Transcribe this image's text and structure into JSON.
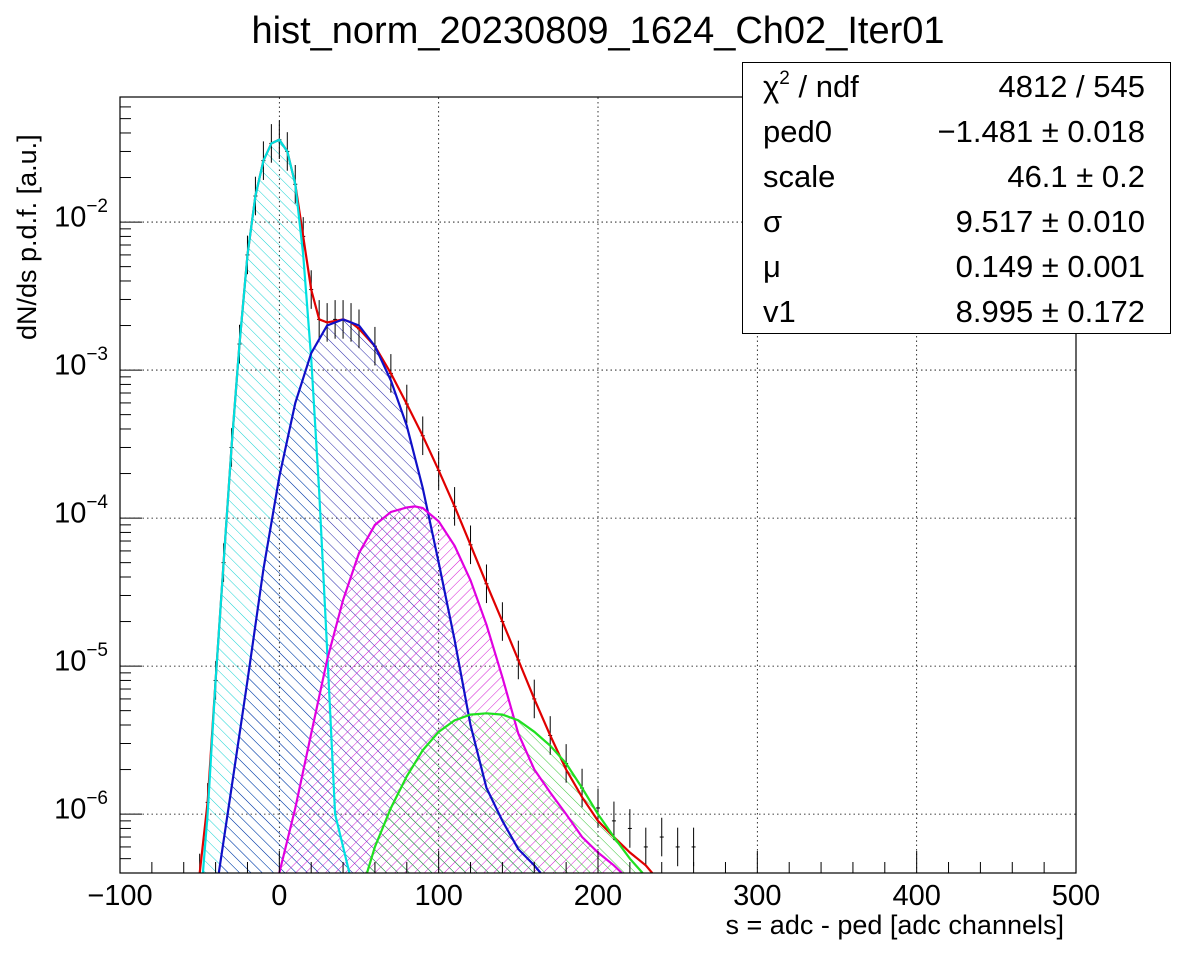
{
  "chart_data": {
    "type": "line",
    "title": "hist_norm_20230809_1624_Ch02_Iter01",
    "xlabel": "s = adc - ped [adc channels]",
    "ylabel": "dN/ds p.d.f. [a.u.]",
    "xlim": [
      -100,
      500
    ],
    "ylim": [
      4e-07,
      0.07
    ],
    "yscale": "log",
    "grid": true,
    "x_ticks": [
      -100,
      0,
      100,
      200,
      300,
      400,
      500
    ],
    "x_tick_labels": [
      "−100",
      "0",
      "100",
      "200",
      "300",
      "400",
      "500"
    ],
    "y_ticks": [
      {
        "value": 1e-06,
        "base": "10",
        "exp": "−6"
      },
      {
        "value": 1e-05,
        "base": "10",
        "exp": "−5"
      },
      {
        "value": 0.0001,
        "base": "10",
        "exp": "−4"
      },
      {
        "value": 0.001,
        "base": "10",
        "exp": "−3"
      },
      {
        "value": 0.01,
        "base": "10",
        "exp": "−2"
      }
    ],
    "series": [
      {
        "kind": "histogram",
        "color": "#000000",
        "x": [
          -50,
          -45,
          -40,
          -35,
          -30,
          -25,
          -20,
          -15,
          -10,
          -5,
          0,
          5,
          10,
          15,
          20,
          25,
          30,
          35,
          40,
          45,
          50,
          60,
          70,
          80,
          90,
          100,
          110,
          120,
          130,
          140,
          150,
          160,
          170,
          180,
          190,
          200,
          210,
          220,
          230,
          240,
          250,
          260
        ],
        "y": [
          4e-07,
          1.2e-06,
          8e-06,
          5e-05,
          0.0003,
          0.0015,
          0.006,
          0.015,
          0.026,
          0.034,
          0.036,
          0.03,
          0.018,
          0.008,
          0.0035,
          0.0022,
          0.0021,
          0.0022,
          0.0022,
          0.0021,
          0.0019,
          0.00145,
          0.00095,
          0.00059,
          0.00036,
          0.00021,
          0.00012,
          6.6e-05,
          3.6e-05,
          2e-05,
          1.1e-05,
          6e-06,
          3.4e-06,
          2.2e-06,
          1.5e-06,
          1.1e-06,
          9e-07,
          8e-07,
          6e-07,
          7e-07,
          6e-07,
          6e-07
        ]
      },
      {
        "kind": "fit-total",
        "color": "#e00000",
        "x": [
          -50,
          -45,
          -40,
          -35,
          -30,
          -25,
          -20,
          -15,
          -10,
          -5,
          0,
          5,
          10,
          15,
          20,
          25,
          30,
          35,
          40,
          45,
          50,
          60,
          70,
          80,
          90,
          100,
          110,
          120,
          130,
          140,
          150,
          160,
          170,
          180,
          190,
          200,
          210,
          220,
          230,
          234
        ],
        "y": [
          4e-07,
          1.2e-06,
          8e-06,
          5e-05,
          0.0003,
          0.0015,
          0.006,
          0.015,
          0.026,
          0.034,
          0.036,
          0.03,
          0.018,
          0.008,
          0.0035,
          0.0022,
          0.0021,
          0.00215,
          0.0022,
          0.0021,
          0.0019,
          0.00145,
          0.00095,
          0.00059,
          0.00036,
          0.00021,
          0.00012,
          6.6e-05,
          3.6e-05,
          2e-05,
          1.1e-05,
          6e-06,
          3.4e-06,
          2e-06,
          1.3e-06,
          9e-07,
          7e-07,
          5.5e-07,
          4.5e-07,
          4e-07
        ]
      },
      {
        "kind": "component",
        "color": "#00e0e0",
        "hatch": "right",
        "x": [
          -48,
          -45,
          -40,
          -35,
          -30,
          -25,
          -20,
          -15,
          -10,
          -5,
          0,
          5,
          10,
          15,
          20,
          25,
          30,
          35,
          40,
          44
        ],
        "y": [
          4e-07,
          1e-06,
          8e-06,
          5e-05,
          0.0003,
          0.0015,
          0.006,
          0.015,
          0.026,
          0.034,
          0.036,
          0.03,
          0.018,
          0.006,
          0.0012,
          0.00015,
          1.3e-05,
          1e-06,
          6e-07,
          4e-07
        ]
      },
      {
        "kind": "component",
        "color": "#1010c8",
        "hatch": "right",
        "x": [
          -38,
          -30,
          -20,
          -10,
          0,
          10,
          20,
          30,
          40,
          50,
          60,
          70,
          80,
          90,
          100,
          110,
          120,
          130,
          140,
          150,
          160,
          164
        ],
        "y": [
          4e-07,
          1.5e-06,
          8e-06,
          4.5e-05,
          0.00019,
          0.0006,
          0.0013,
          0.002,
          0.0022,
          0.002,
          0.00145,
          0.00085,
          0.00042,
          0.00016,
          5e-05,
          1.5e-05,
          4e-06,
          1.5e-06,
          9e-07,
          5.8e-07,
          4.5e-07,
          4e-07
        ]
      },
      {
        "kind": "component",
        "color": "#e000e0",
        "hatch": "left",
        "x": [
          0,
          10,
          20,
          30,
          40,
          50,
          60,
          70,
          80,
          85,
          90,
          100,
          110,
          120,
          130,
          140,
          150,
          160,
          170,
          180,
          190,
          200,
          210,
          215
        ],
        "y": [
          4e-07,
          1.1e-06,
          3.5e-06,
          1.1e-05,
          2.8e-05,
          5.8e-05,
          9e-05,
          0.00011,
          0.000118,
          0.00012,
          0.000117,
          9.5e-05,
          6.5e-05,
          3.8e-05,
          1.9e-05,
          8.4e-06,
          3.5e-06,
          2e-06,
          1.4e-06,
          1e-06,
          7e-07,
          5.5e-07,
          4.5e-07,
          4e-07
        ]
      },
      {
        "kind": "component",
        "color": "#20e020",
        "hatch": "right",
        "x": [
          55,
          60,
          70,
          80,
          90,
          100,
          110,
          120,
          130,
          140,
          150,
          160,
          170,
          180,
          190,
          200,
          210,
          220,
          228
        ],
        "y": [
          4e-07,
          6e-07,
          1.1e-06,
          1.8e-06,
          2.7e-06,
          3.6e-06,
          4.3e-06,
          4.7e-06,
          4.8e-06,
          4.7e-06,
          4.3e-06,
          3.6e-06,
          2.9e-06,
          2.2e-06,
          1.5e-06,
          1e-06,
          7e-07,
          5e-07,
          4e-07
        ]
      }
    ],
    "stats": [
      {
        "key": "χ",
        "sup": "2",
        "key_rest": " / ndf",
        "value": "4812 / 545"
      },
      {
        "key": "ped0",
        "sup": "",
        "key_rest": "",
        "value": "−1.481 ± 0.018"
      },
      {
        "key": "scale",
        "sup": "",
        "key_rest": "",
        "value": "46.1 ± 0.2"
      },
      {
        "key": "σ",
        "sup": "",
        "key_rest": "",
        "value": "9.517 ± 0.010"
      },
      {
        "key": "μ",
        "sup": "",
        "key_rest": "",
        "value": "0.149 ± 0.001"
      },
      {
        "key": "v1",
        "sup": "",
        "key_rest": "",
        "value": "8.995 ± 0.172"
      }
    ]
  }
}
